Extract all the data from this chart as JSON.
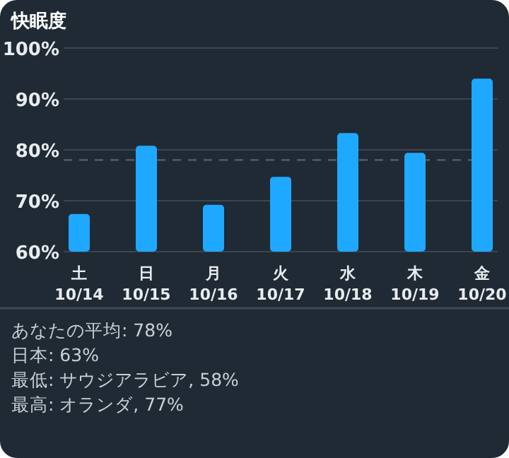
{
  "chart_data": {
    "type": "bar",
    "title": "快眠度",
    "categories": [
      "土\n10/14",
      "日\n10/15",
      "月\n10/16",
      "火\n10/17",
      "水\n10/18",
      "木\n10/19",
      "金\n10/20"
    ],
    "values": [
      67.4,
      80.8,
      69.2,
      74.7,
      83.3,
      79.4,
      94.0
    ],
    "color": "#1fa8ff",
    "ylim": [
      60,
      100
    ],
    "yticks": [
      {
        "value": 60,
        "label": "60%"
      },
      {
        "value": 70,
        "label": "70%"
      },
      {
        "value": 80,
        "label": "80%"
      },
      {
        "value": 90,
        "label": "90%"
      },
      {
        "value": 100,
        "label": "100%"
      }
    ],
    "grid": "y",
    "ref_lines": [
      {
        "axis": "y",
        "value": 78,
        "line_style": "dashed"
      }
    ],
    "annotations": [
      "あなたの平均: 78%",
      "日本: 63%",
      "最低: サウジアラビア, 58%",
      "最高: オランダ, 77%"
    ]
  }
}
